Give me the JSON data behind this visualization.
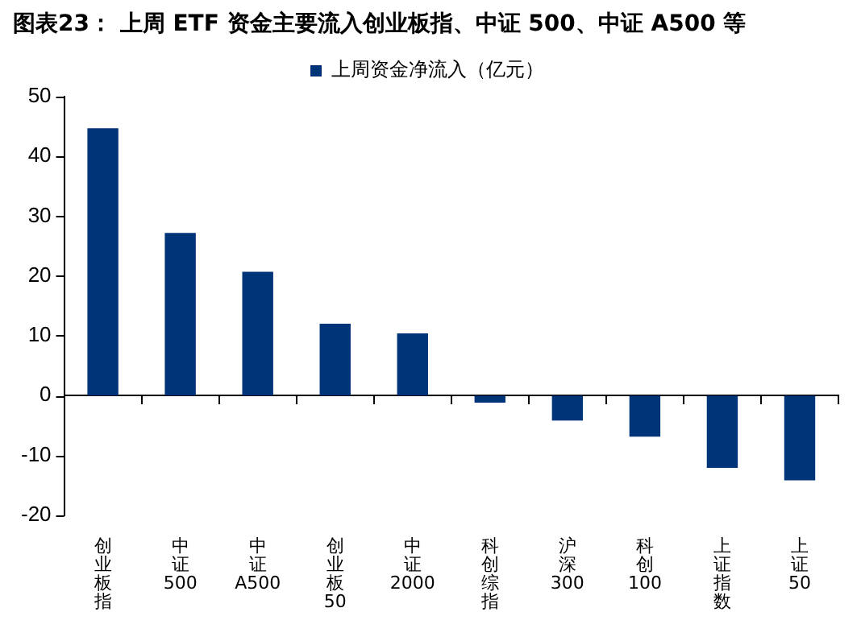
{
  "chart_data": {
    "type": "bar",
    "title": "图表23：  上周 ETF 资金主要流入创业板指、中证 500、中证 A500 等",
    "categories": [
      "创业板指",
      "中证500",
      "中证A500",
      "创业板50",
      "中证2000",
      "科创综指",
      "沪深300",
      "科创100",
      "上证指数",
      "上证50"
    ],
    "series": [
      {
        "name": "上周资金净流入（亿元）",
        "color": "#003478",
        "values": [
          44.7,
          27.2,
          20.7,
          12.0,
          10.4,
          -1.2,
          -4.2,
          -6.9,
          -12.1,
          -14.2
        ]
      }
    ],
    "ylim": [
      -20,
      50
    ],
    "yticks": [
      -20,
      -10,
      0,
      10,
      20,
      30,
      40,
      50
    ],
    "legend": "top"
  }
}
